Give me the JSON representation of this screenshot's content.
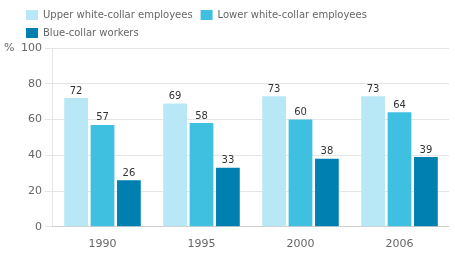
{
  "chart_data": {
    "type": "bar",
    "ylabel": "%",
    "categories": [
      "1990",
      "1995",
      "2000",
      "2006"
    ],
    "series": [
      {
        "name": "Upper white-collar employees",
        "color": "#b8e8f5",
        "values": [
          72,
          69,
          73,
          73
        ]
      },
      {
        "name": "Lower white-collar employees",
        "color": "#40c0e0",
        "values": [
          57,
          58,
          60,
          64
        ]
      },
      {
        "name": "Blue-collar workers",
        "color": "#0080b0",
        "values": [
          26,
          33,
          38,
          39
        ]
      }
    ],
    "ylim": [
      0,
      100
    ],
    "yticks": [
      0,
      20,
      40,
      60,
      80,
      100
    ],
    "grid": true,
    "legend": "upper left",
    "data_labels": true
  }
}
